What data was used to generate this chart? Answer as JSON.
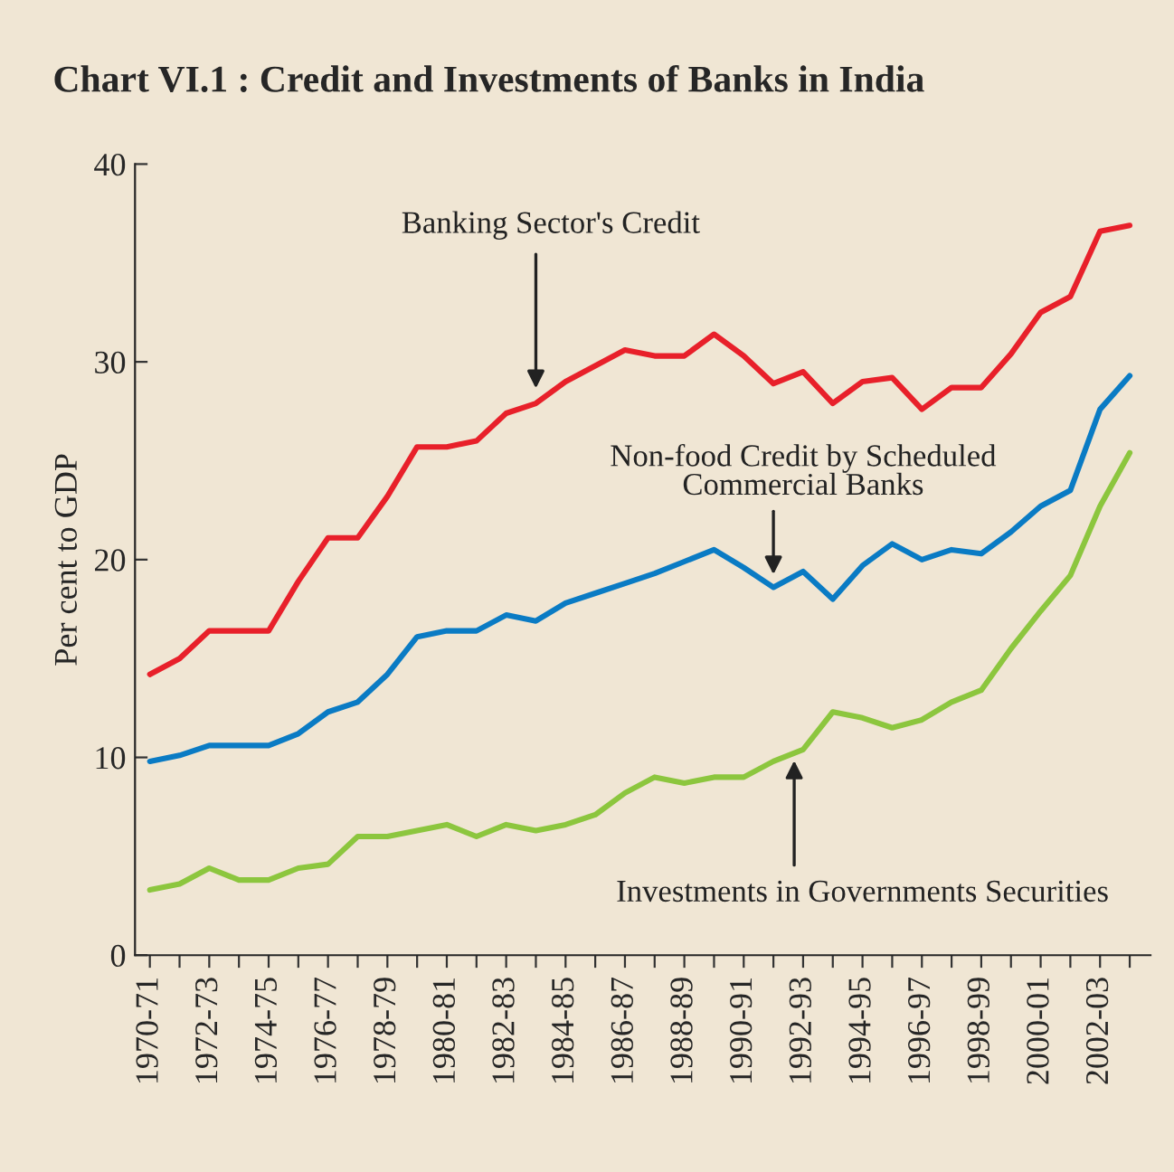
{
  "chart_data": {
    "type": "line",
    "title": "Chart VI.1 : Credit and Investments of Banks in India",
    "ylabel": "Per cent to GDP",
    "categories": [
      "1970-71",
      null,
      "1972-73",
      null,
      "1974-75",
      null,
      "1976-77",
      null,
      "1978-79",
      null,
      "1980-81",
      null,
      "1982-83",
      null,
      "1984-85",
      null,
      "1986-87",
      null,
      "1988-89",
      null,
      "1990-91",
      null,
      "1992-93",
      null,
      "1994-95",
      null,
      "1996-97",
      null,
      "1998-99",
      null,
      "2000-01",
      null,
      "2002-03",
      null
    ],
    "series": [
      {
        "color": "#e8202a",
        "values": [
          14.2,
          15.0,
          16.4,
          16.4,
          16.4,
          18.9,
          21.1,
          21.1,
          23.2,
          25.7,
          25.7,
          26.0,
          27.4,
          27.9,
          29.0,
          29.8,
          30.6,
          30.3,
          30.3,
          31.4,
          30.3,
          28.9,
          29.5,
          27.9,
          29.0,
          29.2,
          27.6,
          28.7,
          28.7,
          30.4,
          32.5,
          33.3,
          36.6,
          36.9
        ]
      },
      {
        "color": "#0a7bc4",
        "values": [
          9.8,
          10.1,
          10.6,
          10.6,
          10.6,
          11.2,
          12.3,
          12.8,
          14.2,
          16.1,
          16.4,
          16.4,
          17.2,
          16.9,
          17.8,
          18.3,
          18.8,
          19.3,
          19.9,
          20.5,
          19.6,
          18.6,
          19.4,
          18.0,
          19.7,
          20.8,
          20.0,
          20.5,
          20.3,
          21.4,
          22.7,
          23.5,
          27.6,
          29.3
        ]
      },
      {
        "color": "#8cc63e",
        "values": [
          3.3,
          3.6,
          4.4,
          3.8,
          3.8,
          4.4,
          4.6,
          6.0,
          6.0,
          6.3,
          6.6,
          6.0,
          6.6,
          6.3,
          6.6,
          7.1,
          8.2,
          9.0,
          8.7,
          9.0,
          9.0,
          9.8,
          10.4,
          12.3,
          12.0,
          11.5,
          11.9,
          12.8,
          13.4,
          15.5,
          17.4,
          19.2,
          22.7,
          25.4
        ]
      }
    ],
    "annotations": [
      "Banking Sector's Credit",
      "Non-food Credit by Scheduled\nCommercial Banks",
      "Investments in Governments Securities"
    ],
    "ylim": [
      0,
      40
    ],
    "yticks": [
      0,
      10,
      20,
      30,
      40
    ],
    "grid": false,
    "legend": false
  }
}
